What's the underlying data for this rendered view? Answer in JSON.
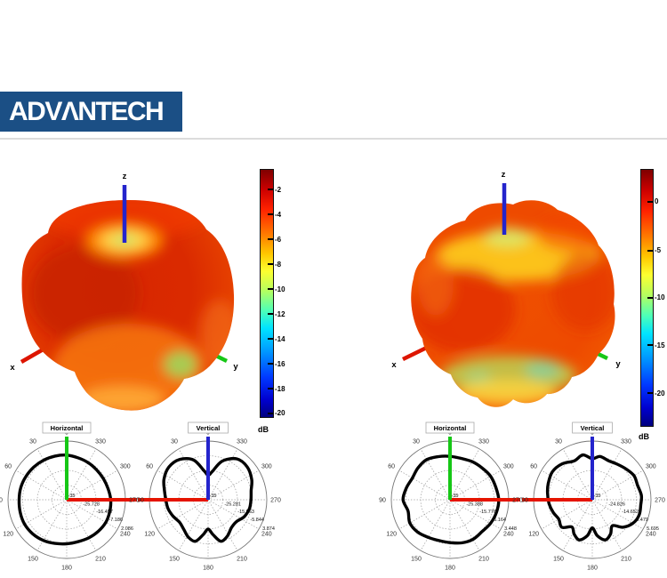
{
  "header": {
    "logo_text": "ADVΛNTECH"
  },
  "colors": {
    "brand_blue": "#1b4f85",
    "divider": "#dcdcdc",
    "x_axis": "#dd1500",
    "y_axis": "#16c716",
    "z_axis": "#2424cc",
    "pattern_trace": "#000000",
    "polar_grid": "#999999"
  },
  "chart_data": [
    {
      "type": "polar",
      "group": "antenna-pattern-1",
      "title": "Horizontal",
      "angle_labels": [
        "0",
        "30",
        "60",
        "90",
        "120",
        "150",
        "180",
        "210",
        "240",
        "270",
        "300",
        "330"
      ],
      "center_label": "-35",
      "ring_labels": [
        "-25.728",
        "-16.457",
        "-7.186",
        "2.086"
      ],
      "range_db": [
        -35,
        2.086
      ],
      "unit": "dB",
      "up_axis_color": "#16c716",
      "side_axis_color": "#e51400",
      "side_axis_direction": "right",
      "pattern": {
        "angles_deg": [
          0,
          15,
          30,
          45,
          60,
          75,
          90,
          105,
          120,
          135,
          150,
          165,
          180,
          195,
          210,
          225,
          240,
          255,
          270,
          285,
          300,
          315,
          330,
          345
        ],
        "r_frac": [
          0.76,
          0.77,
          0.78,
          0.79,
          0.8,
          0.81,
          0.81,
          0.82,
          0.83,
          0.82,
          0.8,
          0.77,
          0.75,
          0.74,
          0.75,
          0.76,
          0.77,
          0.76,
          0.75,
          0.73,
          0.72,
          0.72,
          0.73,
          0.74
        ]
      }
    },
    {
      "type": "polar",
      "group": "antenna-pattern-1",
      "title": "Vertical",
      "angle_labels": [
        "0",
        "30",
        "60",
        "90",
        "120",
        "150",
        "180",
        "210",
        "240",
        "270",
        "300",
        "330"
      ],
      "center_label": "-35",
      "ring_labels": [
        "-25.281",
        "-15.563",
        "-5.844",
        "3.874"
      ],
      "range_db": [
        -35,
        3.874
      ],
      "unit": "dB",
      "up_axis_color": "#2424cc",
      "side_axis_color": "#e51400",
      "side_axis_direction": "left",
      "pattern": {
        "angles_deg": [
          0,
          8,
          20,
          35,
          50,
          65,
          78,
          90,
          102,
          115,
          128,
          140,
          152,
          163,
          172,
          180,
          188,
          197,
          208,
          220,
          232,
          245,
          258,
          270,
          282,
          295,
          310,
          325,
          340,
          352
        ],
        "r_frac": [
          0.42,
          0.5,
          0.72,
          0.84,
          0.87,
          0.83,
          0.76,
          0.72,
          0.7,
          0.66,
          0.62,
          0.65,
          0.72,
          0.74,
          0.6,
          0.5,
          0.6,
          0.74,
          0.7,
          0.62,
          0.61,
          0.68,
          0.72,
          0.73,
          0.75,
          0.82,
          0.87,
          0.85,
          0.7,
          0.48
        ]
      }
    },
    {
      "type": "polar",
      "group": "antenna-pattern-2",
      "title": "Horizontal",
      "angle_labels": [
        "0",
        "30",
        "60",
        "90",
        "120",
        "150",
        "180",
        "210",
        "240",
        "270",
        "300",
        "330"
      ],
      "center_label": "-35",
      "ring_labels": [
        "-25.388",
        "-15.776",
        "-6.164",
        "3.448"
      ],
      "range_db": [
        -35,
        3.448
      ],
      "unit": "dB",
      "up_axis_color": "#16c716",
      "side_axis_color": "#e51400",
      "side_axis_direction": "right",
      "pattern": {
        "angles_deg": [
          0,
          15,
          30,
          45,
          60,
          75,
          90,
          105,
          120,
          135,
          150,
          165,
          180,
          195,
          210,
          225,
          240,
          255,
          270,
          285,
          300,
          315,
          330,
          345
        ],
        "r_frac": [
          0.74,
          0.76,
          0.79,
          0.77,
          0.74,
          0.77,
          0.8,
          0.74,
          0.79,
          0.78,
          0.74,
          0.72,
          0.73,
          0.76,
          0.78,
          0.77,
          0.8,
          0.82,
          0.83,
          0.81,
          0.8,
          0.77,
          0.75,
          0.73
        ]
      }
    },
    {
      "type": "polar",
      "group": "antenna-pattern-2",
      "title": "Vertical",
      "angle_labels": [
        "0",
        "30",
        "60",
        "90",
        "120",
        "150",
        "180",
        "210",
        "240",
        "270",
        "300",
        "330"
      ],
      "center_label": "-35",
      "ring_labels": [
        "-24.826",
        "-14.652",
        "-4.479",
        "5.695"
      ],
      "range_db": [
        -35,
        5.695
      ],
      "unit": "dB",
      "up_axis_color": "#2424cc",
      "side_axis_color": "#e51400",
      "side_axis_direction": "left",
      "pattern": {
        "angles_deg": [
          0,
          12,
          25,
          40,
          55,
          70,
          82,
          95,
          108,
          120,
          132,
          143,
          152,
          162,
          172,
          180,
          188,
          198,
          208,
          218,
          228,
          240,
          252,
          264,
          275,
          288,
          300,
          312,
          325,
          338,
          350
        ],
        "r_frac": [
          0.7,
          0.78,
          0.73,
          0.8,
          0.83,
          0.8,
          0.77,
          0.74,
          0.7,
          0.66,
          0.7,
          0.58,
          0.66,
          0.72,
          0.62,
          0.48,
          0.62,
          0.72,
          0.66,
          0.56,
          0.7,
          0.8,
          0.84,
          0.83,
          0.84,
          0.81,
          0.82,
          0.78,
          0.74,
          0.72,
          0.75
        ]
      }
    },
    {
      "type": "3d-pattern",
      "group": "antenna-pattern-1",
      "axis_labels": {
        "x": "x",
        "y": "y",
        "z": "z"
      },
      "colorbar": {
        "unit": "dB",
        "colormap": "jet",
        "tick_labels": [
          "-2",
          "-4",
          "-6",
          "-8",
          "-10",
          "-12",
          "-14",
          "-16",
          "-18",
          "-20"
        ],
        "tick_pos": [
          0.083,
          0.184,
          0.285,
          0.385,
          0.486,
          0.587,
          0.688,
          0.788,
          0.889,
          0.989
        ]
      }
    },
    {
      "type": "3d-pattern",
      "group": "antenna-pattern-2",
      "axis_labels": {
        "x": "x",
        "y": "y",
        "z": "z"
      },
      "colorbar": {
        "unit": "dB",
        "colormap": "jet",
        "tick_labels": [
          "0",
          "-5",
          "-10",
          "-15",
          "-20"
        ],
        "tick_pos": [
          0.128,
          0.319,
          0.503,
          0.688,
          0.875
        ]
      }
    }
  ]
}
